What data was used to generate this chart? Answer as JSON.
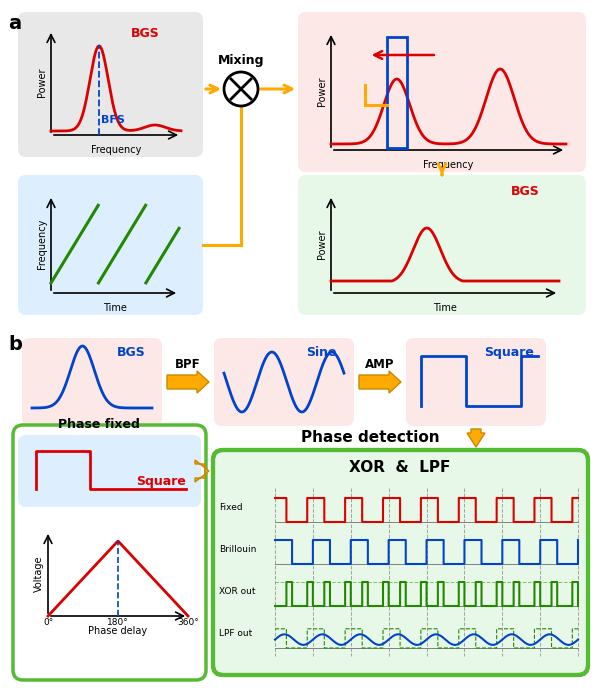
{
  "fig_width": 6.0,
  "fig_height": 6.98,
  "dpi": 100,
  "bg_color": "#ffffff",
  "panel_a_label": "a",
  "panel_b_label": "b",
  "gray_bg": "#e8e8e8",
  "pink_bg": "#fde8e8",
  "blue_bg": "#ddeeff",
  "green_bg": "#e8f8e8",
  "green_border": "#55bb33",
  "red_color": "#dd0000",
  "blue_color": "#0044cc",
  "green_color": "#228800",
  "orange_color": "#ffaa00",
  "dark_orange": "#cc8800",
  "black": "#000000",
  "gray": "#888888",
  "mixing_label": "Mixing",
  "bpf_label": "BPF",
  "amp_label": "AMP",
  "bgs_label": "BGS",
  "bfs_label": "BFS",
  "sine_label": "Sine",
  "square_label": "Square",
  "phase_fixed_label": "Phase fixed",
  "phase_detection_label": "Phase detection",
  "xor_lpf_label": "XOR  &  LPF",
  "frequency_label": "Frequency",
  "time_label": "Time",
  "power_label": "Power",
  "voltage_label": "Voltage",
  "phase_delay_label": "Phase delay",
  "fixed_label": "Fixed",
  "brillouin_label": "Brillouin",
  "xor_out_label": "XOR out",
  "lpf_out_label": "LPF out",
  "deg0": "0°",
  "deg180": "180°",
  "deg360": "360°"
}
